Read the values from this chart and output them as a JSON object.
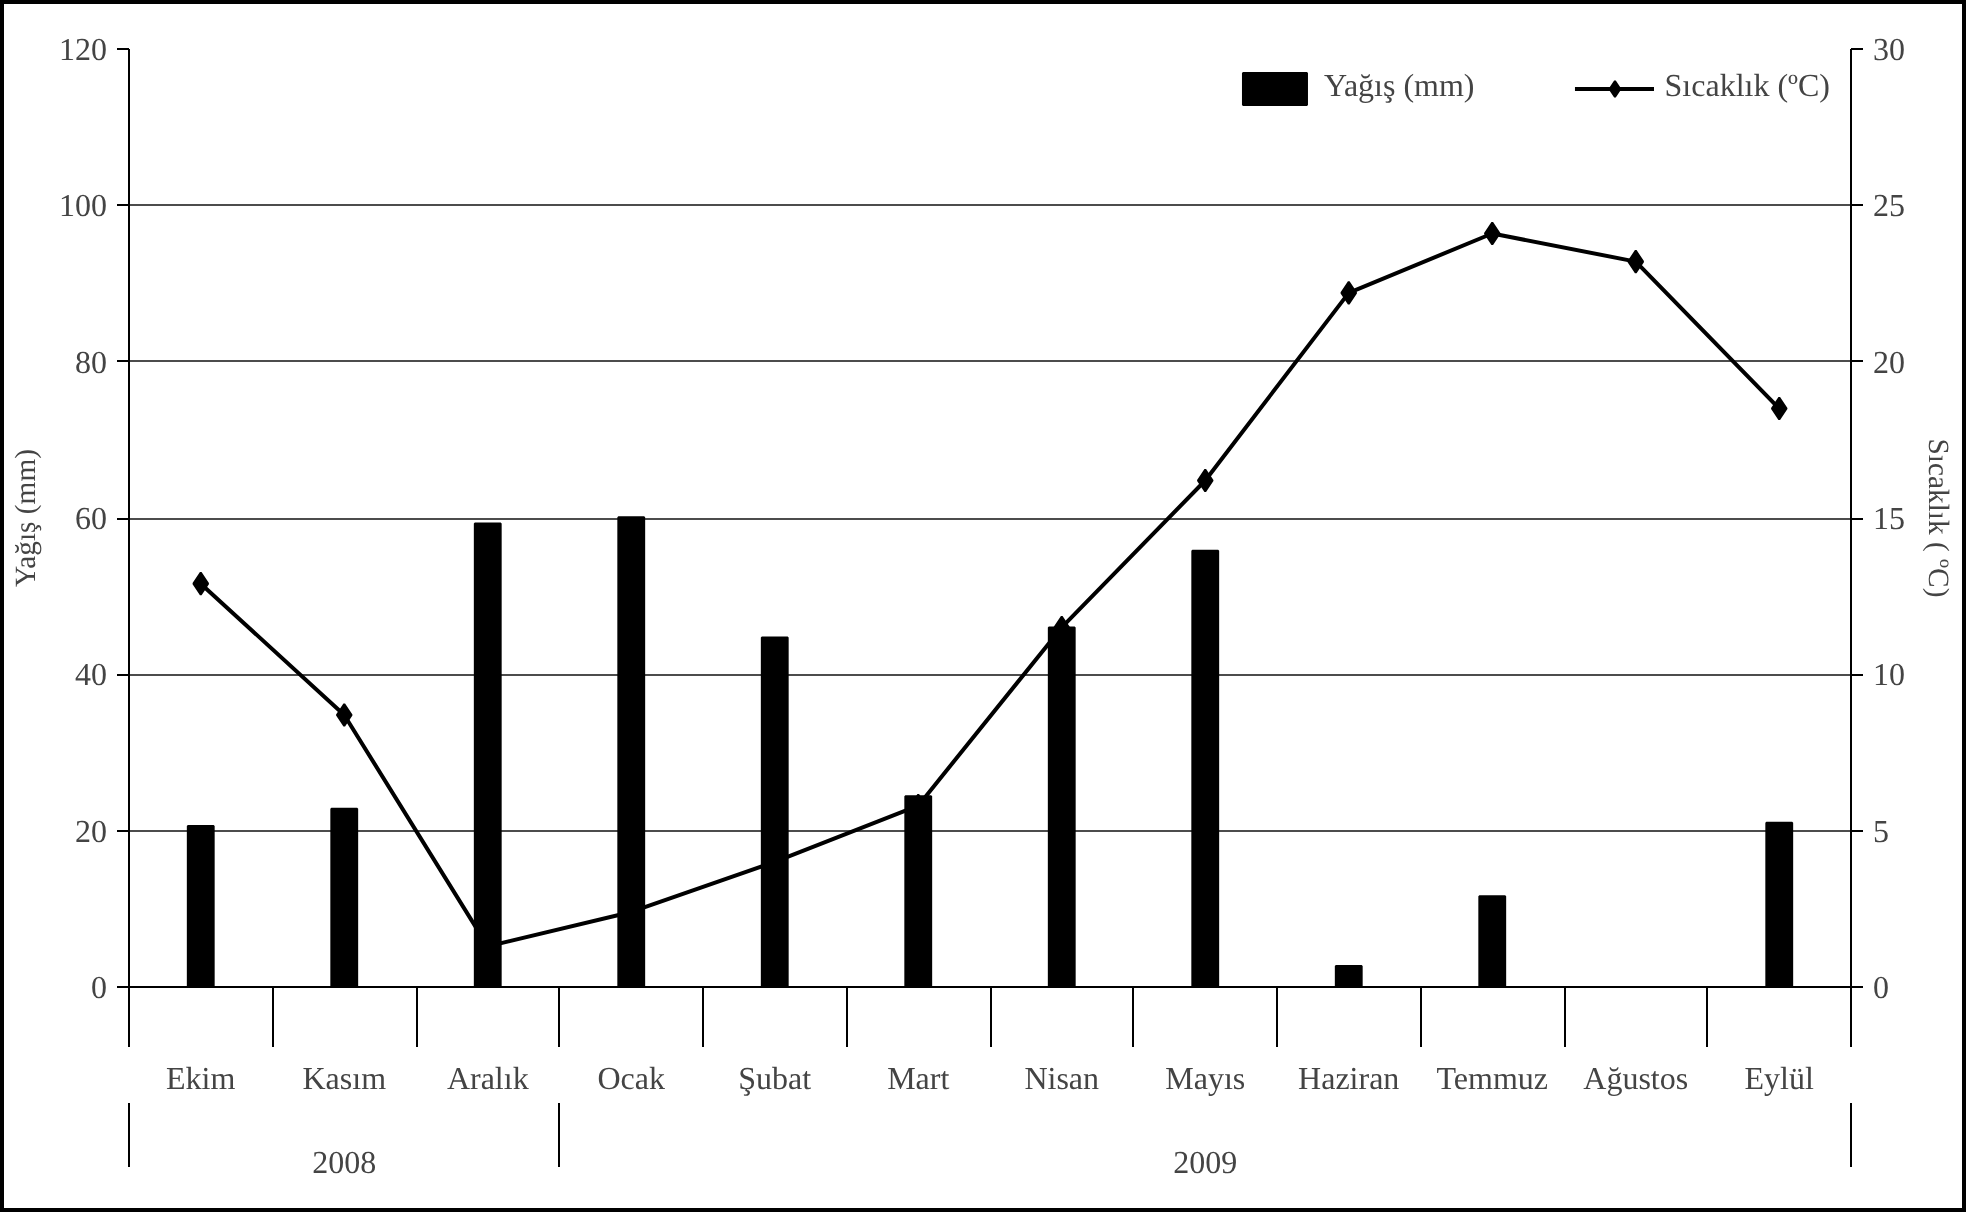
{
  "chart_data": {
    "type": "bar",
    "categories": [
      "Ekim",
      "Kasım",
      "Aralık",
      "Ocak",
      "Şubat",
      "Mart",
      "Nisan",
      "Mayıs",
      "Haziran",
      "Temmuz",
      "Ağustos",
      "Eylül"
    ],
    "series": [
      {
        "name": "Yağış (mm)",
        "color": "#000000",
        "values": [
          20.6,
          22.8,
          59.3,
          60.1,
          44.7,
          24.4,
          46.0,
          55.8,
          2.7,
          11.6,
          0,
          21.0
        ]
      },
      {
        "name": "Sıcaklık (ºC)",
        "type": "line",
        "axis": "y2",
        "color": "#000000",
        "marker": "diamond",
        "values": [
          12.9,
          8.7,
          1.3,
          2.4,
          4.0,
          5.8,
          11.5,
          16.2,
          22.2,
          24.1,
          23.2,
          18.5
        ]
      }
    ],
    "ylabel": "Yağış (mm)",
    "y2label": "Sıcaklık ( ºC)",
    "ylim": [
      0,
      120
    ],
    "yticks": [
      0,
      20,
      40,
      60,
      80,
      100,
      120
    ],
    "y2lim": [
      0,
      30
    ],
    "y2ticks": [
      0,
      5,
      10,
      15,
      20,
      25,
      30
    ],
    "annotations": [
      "2008",
      "2009"
    ],
    "grid": "y",
    "legend": "top right"
  }
}
